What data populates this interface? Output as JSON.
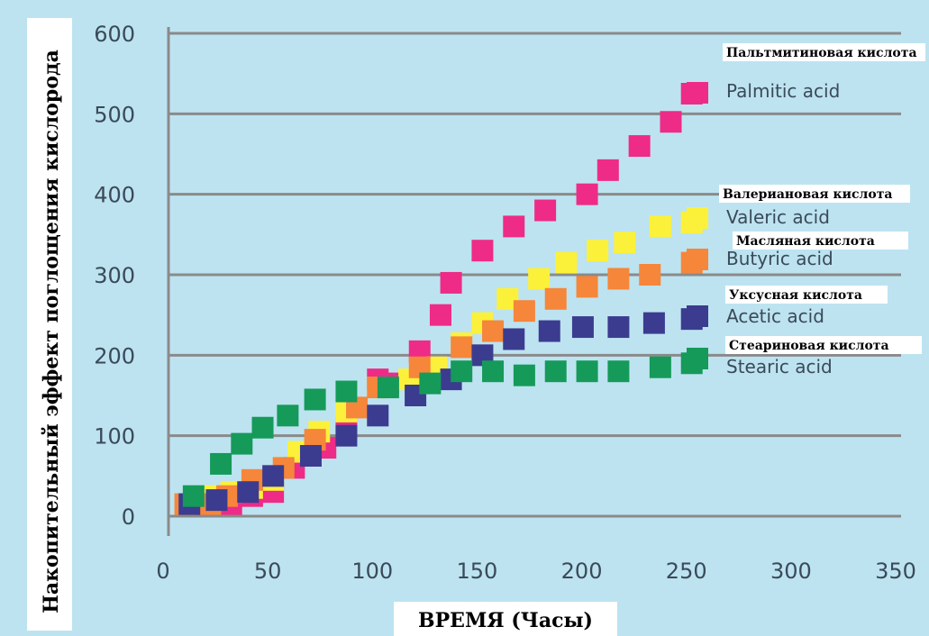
{
  "chart_data": {
    "type": "scatter",
    "title": "",
    "xlabel": "ВРЕМЯ (Часы)",
    "ylabel": "Накопительный эффект поглощения кислорода",
    "xlim": [
      0,
      350
    ],
    "ylim": [
      0,
      600
    ],
    "x_ticks": [
      "0",
      "50",
      "100",
      "150",
      "200",
      "250",
      "300",
      "350"
    ],
    "y_ticks": [
      "0",
      "100",
      "200",
      "300",
      "400",
      "500",
      "600"
    ],
    "grid": "horizontal",
    "legend_position": "right",
    "colors": {
      "background": "#bde3f1",
      "grid": "#8a8a8a",
      "palmitic": "#ee2b86",
      "valeric": "#fbf03a",
      "butyric": "#f5863a",
      "acetic": "#3b3b8f",
      "stearic": "#169a5a"
    },
    "series": [
      {
        "name": "Palmitic acid",
        "name_ru": "Пальтмитиновая  кислота",
        "color": "#ee2b86",
        "points": [
          [
            8,
            15
          ],
          [
            20,
            15
          ],
          [
            30,
            15
          ],
          [
            40,
            25
          ],
          [
            50,
            30
          ],
          [
            60,
            60
          ],
          [
            75,
            85
          ],
          [
            85,
            110
          ],
          [
            100,
            170
          ],
          [
            105,
            165
          ],
          [
            120,
            205
          ],
          [
            130,
            250
          ],
          [
            135,
            290
          ],
          [
            150,
            330
          ],
          [
            165,
            360
          ],
          [
            180,
            380
          ],
          [
            200,
            400
          ],
          [
            210,
            430
          ],
          [
            225,
            460
          ],
          [
            240,
            490
          ],
          [
            250,
            525
          ]
        ]
      },
      {
        "name": "Valeric acid",
        "name_ru": "Валериановая кислота",
        "color": "#fbf03a",
        "points": [
          [
            8,
            15
          ],
          [
            20,
            25
          ],
          [
            30,
            30
          ],
          [
            40,
            35
          ],
          [
            50,
            45
          ],
          [
            62,
            80
          ],
          [
            72,
            105
          ],
          [
            85,
            130
          ],
          [
            100,
            160
          ],
          [
            115,
            170
          ],
          [
            128,
            185
          ],
          [
            140,
            215
          ],
          [
            150,
            240
          ],
          [
            162,
            270
          ],
          [
            177,
            295
          ],
          [
            190,
            315
          ],
          [
            205,
            330
          ],
          [
            218,
            340
          ],
          [
            235,
            360
          ],
          [
            250,
            365
          ]
        ]
      },
      {
        "name": "Butyric acid",
        "name_ru": "Масляная кислота",
        "color": "#f5863a",
        "points": [
          [
            8,
            15
          ],
          [
            20,
            15
          ],
          [
            28,
            25
          ],
          [
            40,
            45
          ],
          [
            55,
            60
          ],
          [
            70,
            95
          ],
          [
            90,
            135
          ],
          [
            100,
            160
          ],
          [
            120,
            185
          ],
          [
            140,
            210
          ],
          [
            155,
            230
          ],
          [
            170,
            255
          ],
          [
            185,
            270
          ],
          [
            200,
            285
          ],
          [
            215,
            295
          ],
          [
            230,
            300
          ],
          [
            250,
            315
          ]
        ]
      },
      {
        "name": "Acetic acid",
        "name_ru": "Уксусная кислота",
        "color": "#3b3b8f",
        "points": [
          [
            10,
            15
          ],
          [
            23,
            20
          ],
          [
            38,
            30
          ],
          [
            50,
            50
          ],
          [
            68,
            75
          ],
          [
            85,
            100
          ],
          [
            100,
            125
          ],
          [
            118,
            150
          ],
          [
            135,
            170
          ],
          [
            150,
            200
          ],
          [
            165,
            220
          ],
          [
            182,
            230
          ],
          [
            198,
            235
          ],
          [
            215,
            235
          ],
          [
            232,
            240
          ],
          [
            250,
            245
          ]
        ]
      },
      {
        "name": "Stearic acid",
        "name_ru": "Стеариновая кислота",
        "color": "#169a5a",
        "points": [
          [
            12,
            25
          ],
          [
            25,
            65
          ],
          [
            35,
            90
          ],
          [
            45,
            110
          ],
          [
            57,
            125
          ],
          [
            70,
            145
          ],
          [
            85,
            155
          ],
          [
            105,
            160
          ],
          [
            125,
            165
          ],
          [
            140,
            180
          ],
          [
            155,
            180
          ],
          [
            170,
            175
          ],
          [
            185,
            180
          ],
          [
            200,
            180
          ],
          [
            215,
            180
          ],
          [
            235,
            185
          ],
          [
            250,
            190
          ]
        ]
      }
    ]
  }
}
